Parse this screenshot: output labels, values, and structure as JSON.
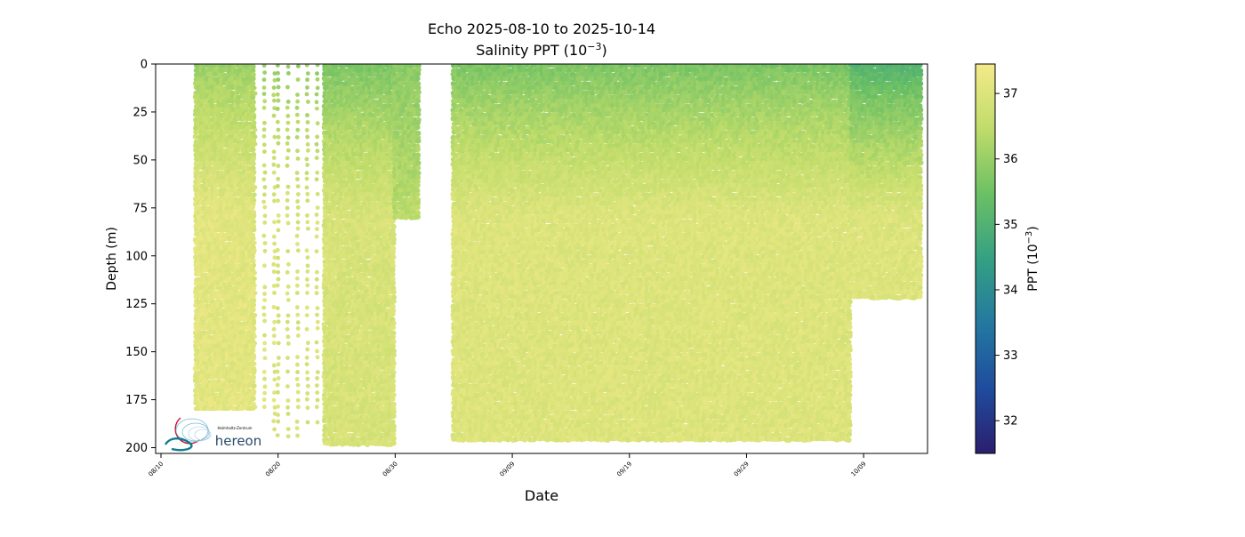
{
  "chart_data": {
    "type": "scatter",
    "title": "Echo 2025-08-10 to 2025-10-14",
    "subtitle_main": "Salinity PPT (10",
    "subtitle_sup": "−3",
    "subtitle_close": ")",
    "xlabel": "Date",
    "ylabel": "Depth (m)",
    "colorbar_label_main": "PPT (10",
    "colorbar_label_sup": "−3",
    "colorbar_label_close": ")",
    "x_ticks": [
      "08/10",
      "08/20",
      "08/30",
      "09/09",
      "09/19",
      "09/29",
      "10/09"
    ],
    "y_ticks": [
      0,
      25,
      50,
      75,
      100,
      125,
      150,
      175,
      200
    ],
    "ylim": [
      203,
      0
    ],
    "xlim": [
      "2025-08-10",
      "2025-10-14"
    ],
    "color_range": [
      31.5,
      37.45
    ],
    "colorbar_ticks": [
      32,
      33,
      34,
      35,
      36,
      37
    ],
    "colormap": [
      "#2c1e6e",
      "#1f4c9e",
      "#2478a0",
      "#35a083",
      "#6cc064",
      "#bfdc6a",
      "#f5ea8a"
    ],
    "segments": [
      {
        "start": "2025-08-13",
        "end": "2025-08-18",
        "depth_max": 180,
        "surface_salinity": 36.0,
        "deep_salinity": 37.1,
        "style": "dense"
      },
      {
        "start": "2025-08-18",
        "end": "2025-08-20",
        "depth_max": 200,
        "surface_salinity": 36.0,
        "deep_salinity": 37.0,
        "style": "sparse"
      },
      {
        "start": "2025-08-20",
        "end": "2025-08-24",
        "depth_max": 197,
        "surface_salinity": 35.9,
        "deep_salinity": 36.9,
        "style": "sparse"
      },
      {
        "start": "2025-08-24",
        "end": "2025-08-30",
        "depth_max": 198,
        "surface_salinity": 35.6,
        "deep_salinity": 36.9,
        "style": "dense"
      },
      {
        "start": "2025-08-30",
        "end": "2025-09-01",
        "depth_max": 82,
        "surface_salinity": 35.8,
        "deep_salinity": 36.4,
        "style": "dense"
      },
      {
        "start": "2025-09-04",
        "end": "2025-10-08",
        "depth_max": 197,
        "surface_salinity": 35.6,
        "deep_salinity": 37.0,
        "style": "dense"
      },
      {
        "start": "2025-10-08",
        "end": "2025-10-14",
        "depth_max": 123,
        "surface_salinity": 35.0,
        "deep_salinity": 37.0,
        "style": "dense"
      }
    ],
    "logo_text": "hereon",
    "logo_subtext": "Helmholtz-Zentrum"
  }
}
